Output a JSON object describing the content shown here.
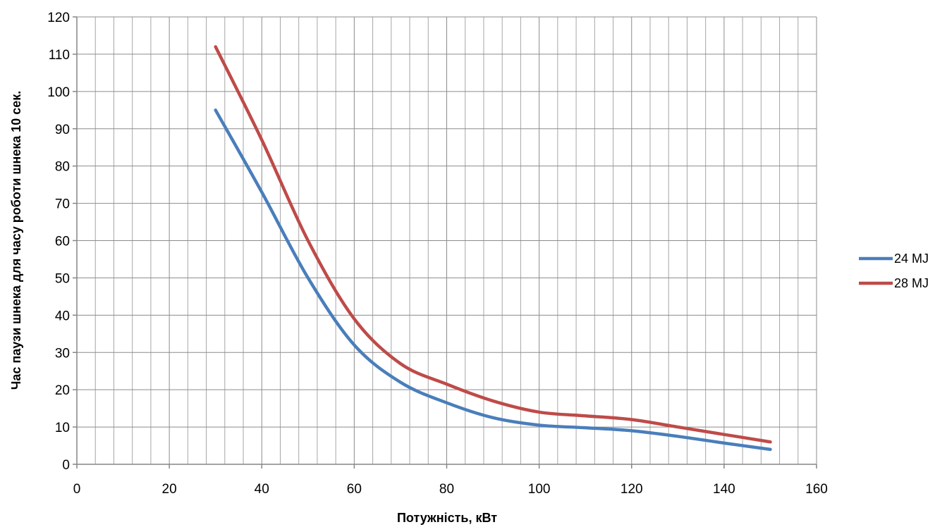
{
  "chart_data": {
    "type": "line",
    "title": "",
    "xlabel": "Потужність, кВт",
    "ylabel": "Час паузи шнека для часу роботи шнека 10 сек.",
    "xlim": [
      0,
      160
    ],
    "ylim": [
      0,
      120
    ],
    "x_ticks": [
      0,
      20,
      40,
      60,
      80,
      100,
      120,
      140,
      160
    ],
    "y_ticks": [
      0,
      10,
      20,
      30,
      40,
      50,
      60,
      70,
      80,
      90,
      100,
      110,
      120
    ],
    "grid": "on",
    "legend_position": "right",
    "series": [
      {
        "name": "24 MJ",
        "color": "#4A7EBB",
        "x": [
          30,
          40,
          50,
          60,
          70,
          80,
          90,
          100,
          110,
          120,
          130,
          140,
          150
        ],
        "y": [
          95,
          73,
          50,
          32,
          22,
          16.5,
          12.5,
          10.5,
          9.8,
          9,
          7.5,
          5.7,
          4
        ]
      },
      {
        "name": "28 MJ",
        "color": "#BE4B48",
        "x": [
          30,
          40,
          50,
          60,
          70,
          80,
          90,
          100,
          110,
          120,
          130,
          140,
          150
        ],
        "y": [
          112,
          87,
          60,
          39,
          27,
          21.5,
          17,
          14,
          13,
          12,
          10,
          8,
          6
        ]
      }
    ]
  }
}
